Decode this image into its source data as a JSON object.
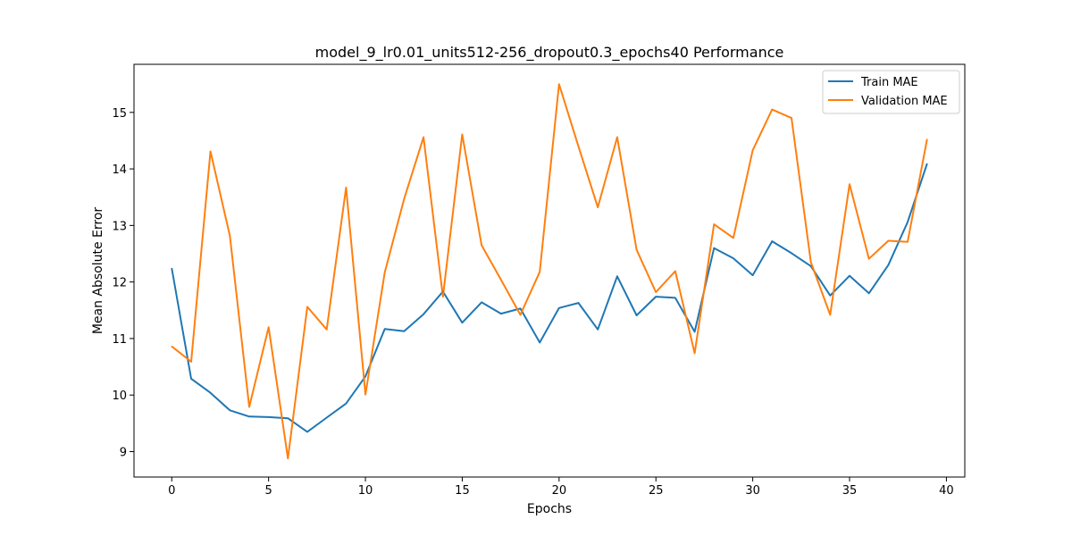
{
  "chart_data": {
    "type": "line",
    "title": "model_9_lr0.01_units512-256_dropout0.3_epochs40 Performance",
    "xlabel": "Epochs",
    "ylabel": "Mean Absolute Error",
    "xlim": [
      -1.95,
      40.95
    ],
    "ylim": [
      8.55,
      15.85
    ],
    "xticks": [
      0,
      5,
      10,
      15,
      20,
      25,
      30,
      35,
      40
    ],
    "yticks": [
      9,
      10,
      11,
      12,
      13,
      14,
      15
    ],
    "grid": false,
    "legend_position": "top-right",
    "x": [
      0,
      1,
      2,
      3,
      4,
      5,
      6,
      7,
      8,
      9,
      10,
      11,
      12,
      13,
      14,
      15,
      16,
      17,
      18,
      19,
      20,
      21,
      22,
      23,
      24,
      25,
      26,
      27,
      28,
      29,
      30,
      31,
      32,
      33,
      34,
      35,
      36,
      37,
      38,
      39
    ],
    "series": [
      {
        "name": "Train MAE",
        "color": "#1f77b4",
        "values": [
          12.24,
          10.29,
          10.04,
          9.73,
          9.62,
          9.61,
          9.59,
          9.35,
          9.6,
          9.85,
          10.33,
          11.17,
          11.13,
          11.43,
          11.83,
          11.28,
          11.64,
          11.44,
          11.53,
          10.93,
          11.54,
          11.63,
          11.16,
          12.1,
          11.41,
          11.74,
          11.72,
          11.12,
          12.6,
          12.42,
          12.12,
          12.72,
          12.51,
          12.28,
          11.76,
          12.11,
          11.8,
          12.3,
          13.06,
          14.09
        ]
      },
      {
        "name": "Validation MAE",
        "color": "#ff7f0e",
        "values": [
          10.86,
          10.59,
          14.31,
          12.82,
          9.79,
          11.2,
          8.88,
          11.56,
          11.16,
          13.67,
          10.01,
          12.17,
          13.47,
          14.56,
          11.74,
          14.61,
          12.65,
          12.04,
          11.42,
          12.18,
          15.5,
          14.4,
          13.32,
          14.56,
          12.57,
          11.82,
          12.19,
          10.74,
          13.02,
          12.78,
          14.33,
          15.05,
          14.9,
          12.35,
          11.42,
          13.73,
          12.41,
          12.73,
          12.71,
          14.52
        ]
      }
    ]
  }
}
